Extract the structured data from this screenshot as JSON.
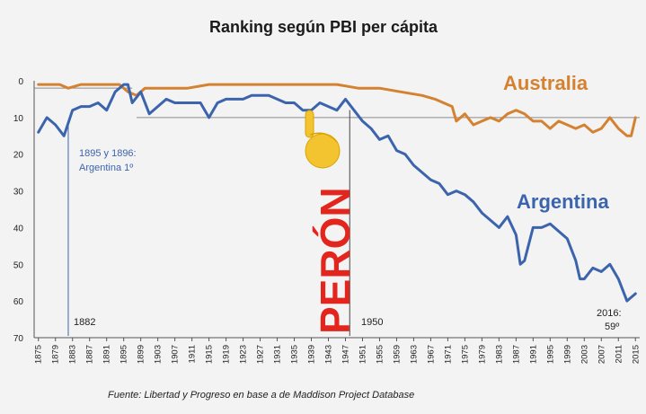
{
  "chart_data": {
    "type": "line",
    "title": "Ranking según PBI per cápita",
    "ylim": [
      0,
      70
    ],
    "y_inverted": true,
    "y_ticks": [
      "0",
      "10",
      "20",
      "30",
      "40",
      "50",
      "60",
      "70"
    ],
    "x_ticks": [
      "1875",
      "1879",
      "1883",
      "1887",
      "1891",
      "1895",
      "1899",
      "1903",
      "1907",
      "1911",
      "1915",
      "1919",
      "1923",
      "1927",
      "1931",
      "1935",
      "1939",
      "1943",
      "1947",
      "1951",
      "1955",
      "1959",
      "1963",
      "1967",
      "1971",
      "1975",
      "1979",
      "1983",
      "1987",
      "1991",
      "1995",
      "1999",
      "2003",
      "2007",
      "2011",
      "2015"
    ],
    "xlim": [
      1874,
      2016
    ],
    "grid": false,
    "series": [
      {
        "name": "Australia",
        "color": "#d48231",
        "points": [
          [
            1875,
            1
          ],
          [
            1880,
            1
          ],
          [
            1882,
            2
          ],
          [
            1885,
            1
          ],
          [
            1890,
            1
          ],
          [
            1894,
            1
          ],
          [
            1896,
            3
          ],
          [
            1898,
            4
          ],
          [
            1900,
            2
          ],
          [
            1903,
            2
          ],
          [
            1906,
            2
          ],
          [
            1910,
            2
          ],
          [
            1915,
            1
          ],
          [
            1920,
            1
          ],
          [
            1925,
            1
          ],
          [
            1930,
            1
          ],
          [
            1935,
            1
          ],
          [
            1940,
            1
          ],
          [
            1945,
            1
          ],
          [
            1950,
            2
          ],
          [
            1955,
            2
          ],
          [
            1960,
            3
          ],
          [
            1965,
            4
          ],
          [
            1968,
            5
          ],
          [
            1970,
            6
          ],
          [
            1972,
            7
          ],
          [
            1973,
            11
          ],
          [
            1975,
            9
          ],
          [
            1977,
            12
          ],
          [
            1979,
            11
          ],
          [
            1981,
            10
          ],
          [
            1983,
            11
          ],
          [
            1985,
            9
          ],
          [
            1987,
            8
          ],
          [
            1989,
            9
          ],
          [
            1991,
            11
          ],
          [
            1993,
            11
          ],
          [
            1995,
            13
          ],
          [
            1997,
            11
          ],
          [
            1999,
            12
          ],
          [
            2001,
            13
          ],
          [
            2003,
            12
          ],
          [
            2005,
            14
          ],
          [
            2007,
            13
          ],
          [
            2009,
            10
          ],
          [
            2011,
            13
          ],
          [
            2013,
            15
          ],
          [
            2014,
            15
          ],
          [
            2015,
            10
          ]
        ]
      },
      {
        "name": "Argentina",
        "color": "#3c64ad",
        "points": [
          [
            1875,
            14
          ],
          [
            1877,
            10
          ],
          [
            1879,
            12
          ],
          [
            1881,
            15
          ],
          [
            1883,
            8
          ],
          [
            1885,
            7
          ],
          [
            1887,
            7
          ],
          [
            1889,
            6
          ],
          [
            1891,
            8
          ],
          [
            1893,
            3
          ],
          [
            1895,
            1
          ],
          [
            1896,
            1
          ],
          [
            1897,
            6
          ],
          [
            1899,
            3
          ],
          [
            1901,
            9
          ],
          [
            1903,
            7
          ],
          [
            1905,
            5
          ],
          [
            1907,
            6
          ],
          [
            1909,
            6
          ],
          [
            1911,
            6
          ],
          [
            1913,
            6
          ],
          [
            1915,
            10
          ],
          [
            1917,
            6
          ],
          [
            1919,
            5
          ],
          [
            1921,
            5
          ],
          [
            1923,
            5
          ],
          [
            1925,
            4
          ],
          [
            1927,
            4
          ],
          [
            1929,
            4
          ],
          [
            1931,
            5
          ],
          [
            1933,
            6
          ],
          [
            1935,
            6
          ],
          [
            1937,
            8
          ],
          [
            1939,
            8
          ],
          [
            1941,
            6
          ],
          [
            1943,
            7
          ],
          [
            1945,
            8
          ],
          [
            1947,
            5
          ],
          [
            1949,
            8
          ],
          [
            1951,
            11
          ],
          [
            1953,
            13
          ],
          [
            1955,
            16
          ],
          [
            1957,
            15
          ],
          [
            1959,
            19
          ],
          [
            1961,
            20
          ],
          [
            1963,
            23
          ],
          [
            1965,
            25
          ],
          [
            1967,
            27
          ],
          [
            1969,
            28
          ],
          [
            1971,
            31
          ],
          [
            1973,
            30
          ],
          [
            1975,
            31
          ],
          [
            1977,
            33
          ],
          [
            1979,
            36
          ],
          [
            1981,
            38
          ],
          [
            1983,
            40
          ],
          [
            1985,
            37
          ],
          [
            1987,
            42
          ],
          [
            1988,
            50
          ],
          [
            1989,
            49
          ],
          [
            1991,
            40
          ],
          [
            1993,
            40
          ],
          [
            1995,
            39
          ],
          [
            1997,
            41
          ],
          [
            1999,
            43
          ],
          [
            2001,
            49
          ],
          [
            2002,
            54
          ],
          [
            2003,
            54
          ],
          [
            2005,
            51
          ],
          [
            2007,
            52
          ],
          [
            2009,
            50
          ],
          [
            2011,
            54
          ],
          [
            2013,
            60
          ],
          [
            2015,
            58
          ]
        ]
      }
    ],
    "annotations": {
      "series_label_australia": "Australia",
      "series_label_argentina": "Argentina",
      "note_1895": [
        "1895 y 1896:",
        "Argentina 1º"
      ],
      "marker_1882": "1882",
      "marker_1950": "1950",
      "note_2016": [
        "2016:",
        "59º"
      ],
      "peron": "PERÓN",
      "source": "Fuente: Libertad y Progreso en  base a de Maddison Project Database"
    }
  }
}
